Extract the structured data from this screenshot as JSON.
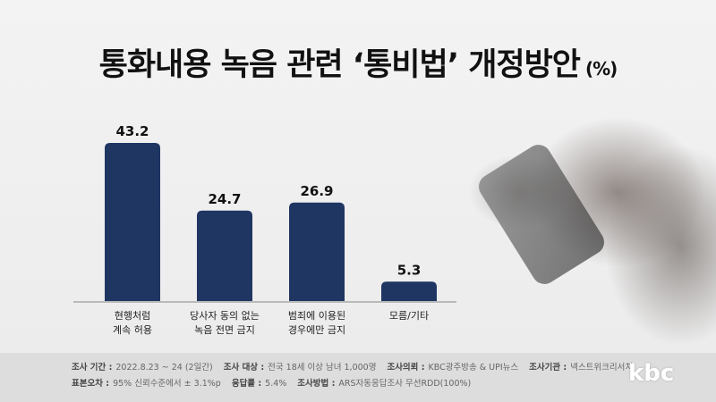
{
  "title": "통화내용 녹음 관련 ‘통비법’ 개정방안",
  "unit": "(%)",
  "chart_data": {
    "type": "bar",
    "categories": [
      [
        "현행처럼",
        "계속 허용"
      ],
      [
        "당사자 동의 없는",
        "녹음 전면 금지"
      ],
      [
        "범죄에 이용된",
        "경우에만 금지"
      ],
      [
        "모름/기타"
      ]
    ],
    "values": [
      43.2,
      24.7,
      26.9,
      5.3
    ],
    "ylim": [
      0,
      43.2
    ],
    "bar_color": "#1f3663"
  },
  "footer": {
    "line1": [
      {
        "label": "조사 기간 :",
        "value": "2022.8.23 ~ 24 (2일간)"
      },
      {
        "label": "조사 대상 :",
        "value": "전국 18세 이상 남녀 1,000명"
      },
      {
        "label": "조사의뢰 :",
        "value": "KBC광주방송 & UPI뉴스"
      },
      {
        "label": "조사기관 :",
        "value": "넥스트위크리서치"
      }
    ],
    "line2": [
      {
        "label": "표본오차 :",
        "value": "95% 신뢰수준에서 ± 3.1%p"
      },
      {
        "label": "응답률 :",
        "value": "5.4%"
      },
      {
        "label": "조사방법 :",
        "value": "ARS자동응답조사 무선RDD(100%)"
      }
    ]
  },
  "logo": "kbc"
}
